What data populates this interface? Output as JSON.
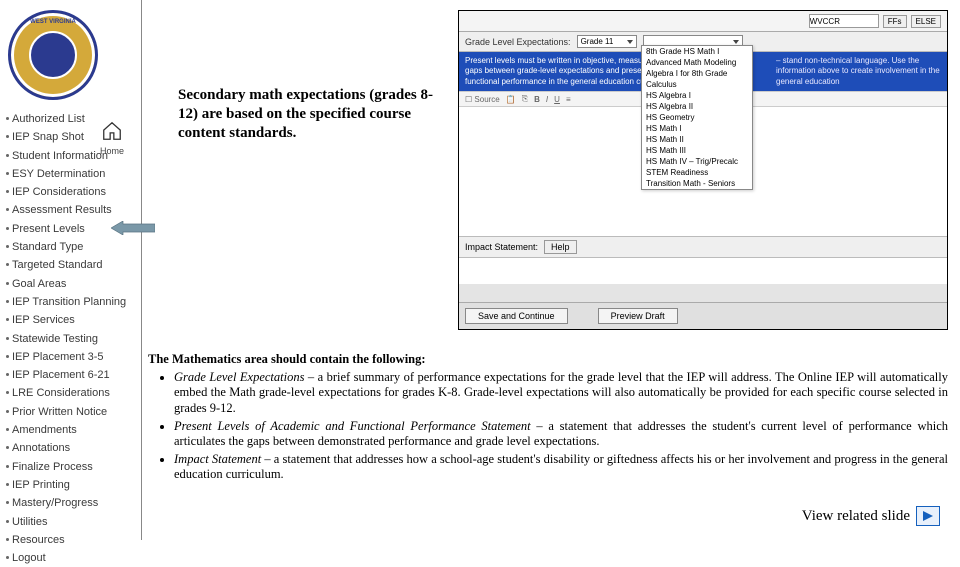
{
  "sidebar": {
    "home_label": "Home",
    "items": [
      "Authorized List",
      "IEP Snap Shot",
      "Student Information",
      "ESY Determination",
      "IEP Considerations",
      "Assessment Results",
      "Present Levels",
      "Standard Type",
      "Targeted Standard",
      "Goal Areas",
      "IEP Transition Planning",
      "IEP Services",
      "Statewide Testing",
      "IEP Placement 3-5",
      "IEP Placement 6-21",
      "LRE Considerations",
      "Prior Written Notice",
      "Amendments",
      "Annotations",
      "Finalize Process",
      "IEP Printing",
      "Mastery/Progress",
      "Utilities",
      "Resources",
      "Logout"
    ],
    "highlighted_index": 6
  },
  "callout": "Secondary math expectations (grades 8-12) are based on the specified  course content standards.",
  "app": {
    "top_buttons": [
      "WVCCR",
      "FFs",
      "ELSE"
    ],
    "band_label": "Grade Level Expectations:",
    "grade_dd": "Grade 11",
    "blue_left": "Present levels must be written in objective, measurable terms articulating the gaps between grade-level expectations and present levels of academic and functional performance in the general education curriculum.",
    "blue_right": "– stand non-technical language. Use the information above to create involvement in the general education",
    "course_options": [
      "8th Grade HS Math I",
      "Advanced Math Modeling",
      "Algebra I for 8th Grade",
      "Calculus",
      "HS Algebra I",
      "HS Algebra II",
      "HS Geometry",
      "HS Math I",
      "HS Math II",
      "HS Math III",
      "HS Math IV – Trig/Precalc",
      "STEM Readiness",
      "Transition Math - Seniors"
    ],
    "toolbar": {
      "source": "Source",
      "bold": "B",
      "italic": "I",
      "underline": "U"
    },
    "impact_label": "Impact Statement:",
    "help_label": "Help",
    "save_btn": "Save and Continue",
    "preview_btn": "Preview Draft"
  },
  "body": {
    "heading": "The Mathematics area should contain the following:",
    "bullets": [
      {
        "lead": "Grade Level Expectations",
        "rest": " – a brief summary of performance expectations for the grade level that the IEP will address.  The Online IEP will automatically embed the Math grade-level expectations for grades K-8.  Grade-level expectations will also automatically be provided for each specific course selected in grades 9-12."
      },
      {
        "lead": "Present Levels of Academic and Functional Performance Statement",
        "rest": " – a statement that addresses the student's current level of performance which articulates the gaps between demonstrated performance and grade level expectations."
      },
      {
        "lead": "Impact Statement",
        "rest": " – a statement that addresses how a school-age student's disability or giftedness affects his or her involvement and progress in the general education curriculum."
      }
    ]
  },
  "related_label": "View related slide",
  "colors": {
    "blue_band": "#1e4db8",
    "gold": "#d4a93a",
    "seal_blue": "#2b3a8f",
    "arrow_fill": "#7a98a8"
  }
}
